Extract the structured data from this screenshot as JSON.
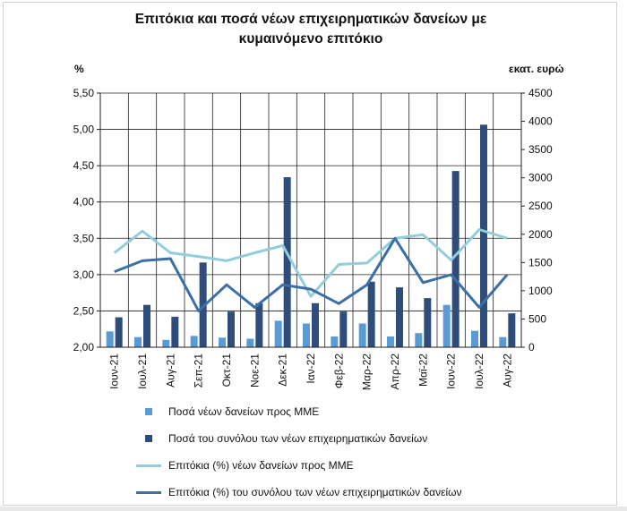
{
  "title_line1": "Επιτόκια και ποσά νέων επιχειρηματικών δανείων με",
  "title_line2": "κυμαινόμενο επιτόκιο",
  "left_unit": "%",
  "right_unit": "εκατ. ευρώ",
  "chart_data": {
    "type": "bar",
    "categories": [
      "Ιουν-21",
      "Ιουλ-21",
      "Αυγ-21",
      "Σεπ-21",
      "Οκτ-21",
      "Νοε-21",
      "Δεκ-21",
      "Ιαν-22",
      "Φεβ-22",
      "Μαρ-22",
      "Απρ-22",
      "Μαϊ-22",
      "Ιουν-22",
      "Ιουλ-22",
      "Αυγ-22"
    ],
    "left_axis": {
      "min": 2.0,
      "max": 5.5,
      "step": 0.5,
      "ticks": [
        "2,00",
        "2,50",
        "3,00",
        "3,50",
        "4,00",
        "4,50",
        "5,00",
        "5,50"
      ]
    },
    "right_axis": {
      "min": 0,
      "max": 4500,
      "step": 500,
      "ticks": [
        "0",
        "500",
        "1000",
        "1500",
        "2000",
        "2500",
        "3000",
        "3500",
        "4000",
        "4500"
      ]
    },
    "grid": true,
    "legend_position": "bottom",
    "series": [
      {
        "name": "Ποσά νέων δανείων προς ΜΜΕ",
        "kind": "bar",
        "axis": "right",
        "color": "#5b9bd5",
        "values": [
          280,
          180,
          130,
          200,
          170,
          150,
          470,
          420,
          190,
          420,
          190,
          250,
          750,
          290,
          180
        ]
      },
      {
        "name": "Ποσά του συνόλου των νέων επιχειρηματικών δανείων",
        "kind": "bar",
        "axis": "right",
        "color": "#2e4d7a",
        "values": [
          530,
          750,
          540,
          1500,
          630,
          780,
          3010,
          780,
          630,
          1160,
          1060,
          870,
          3120,
          3940,
          600
        ]
      },
      {
        "name": "Επιτόκια (%) νέων δανείων προς ΜΜΕ",
        "kind": "line",
        "axis": "left",
        "color": "#92cddc",
        "values": [
          3.3,
          3.6,
          3.3,
          3.25,
          3.19,
          3.3,
          3.4,
          2.7,
          3.14,
          3.16,
          3.5,
          3.55,
          3.2,
          3.62,
          3.5
        ]
      },
      {
        "name": "Επιτόκια (%) του συνόλου των νέων επιχειρηματικών δανείων",
        "kind": "line",
        "axis": "left",
        "color": "#3c6ea8",
        "values": [
          3.04,
          3.19,
          3.22,
          2.5,
          2.86,
          2.55,
          2.86,
          2.8,
          2.6,
          2.86,
          3.5,
          2.89,
          3.0,
          2.55,
          3.0
        ]
      }
    ]
  }
}
